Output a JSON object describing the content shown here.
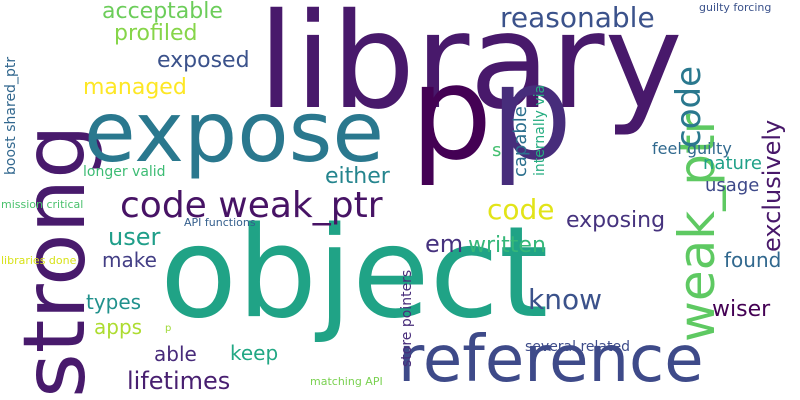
{
  "words": [
    {
      "text": "library",
      "color": "#48196b"
    },
    {
      "text": "object",
      "color": "#20a386"
    },
    {
      "text": "strong",
      "color": "#481a6c"
    },
    {
      "text": "expose",
      "color": "#2a788e"
    },
    {
      "text": "p",
      "color": "#472d7b"
    },
    {
      "text": "p",
      "color": "#440154"
    },
    {
      "text": "reference",
      "color": "#3e4a89"
    },
    {
      "text": "code weak_ptr",
      "color": "#471365"
    },
    {
      "text": "weak_ptr",
      "color": "#5ec962"
    },
    {
      "text": "reasonable",
      "color": "#3b528b"
    },
    {
      "text": "code",
      "color": "#2a788e"
    },
    {
      "text": "code",
      "color": "#e2e418"
    },
    {
      "text": "acceptable",
      "color": "#6ccd5a"
    },
    {
      "text": "profiled",
      "color": "#86d549"
    },
    {
      "text": "exposed",
      "color": "#3b528b"
    },
    {
      "text": "managed",
      "color": "#fde725"
    },
    {
      "text": "lifetimes",
      "color": "#481f70"
    },
    {
      "text": "know",
      "color": "#3b528b"
    },
    {
      "text": "exclusively",
      "color": "#48186a"
    },
    {
      "text": "found",
      "color": "#31688e"
    },
    {
      "text": "wiser",
      "color": "#440154"
    },
    {
      "text": "user",
      "color": "#1f9e89"
    },
    {
      "text": "written",
      "color": "#35b779"
    },
    {
      "text": "either",
      "color": "#25858e"
    },
    {
      "text": "exposing",
      "color": "#46337e"
    },
    {
      "text": "em",
      "color": "#46327e"
    },
    {
      "text": "make",
      "color": "#433e85"
    },
    {
      "text": "types",
      "color": "#21918c"
    },
    {
      "text": "apps",
      "color": "#addc30"
    },
    {
      "text": "able",
      "color": "#472a7a"
    },
    {
      "text": "keep",
      "color": "#22a884"
    },
    {
      "text": "usage",
      "color": "#3e4989"
    },
    {
      "text": "nature",
      "color": "#1fa088"
    },
    {
      "text": "capable",
      "color": "#2d708e"
    },
    {
      "text": "internally via",
      "color": "#26ad81"
    },
    {
      "text": "feel guilty",
      "color": "#30698e"
    },
    {
      "text": "longer valid",
      "color": "#3dbc74"
    },
    {
      "text": "boost shared_ptr",
      "color": "#31678e"
    },
    {
      "text": "store pointers",
      "color": "#472c7a"
    },
    {
      "text": "several related",
      "color": "#3e4c8a"
    },
    {
      "text": "mission critical",
      "color": "#4ac16d"
    },
    {
      "text": "API functions",
      "color": "#355f8d"
    },
    {
      "text": "libraries done",
      "color": "#d8e219"
    },
    {
      "text": "matching API",
      "color": "#7ad151"
    },
    {
      "text": "guilty forcing",
      "color": "#3b528b"
    },
    {
      "text": "s",
      "color": "#44bf70"
    },
    {
      "text": "p",
      "color": "#a0da39"
    }
  ]
}
